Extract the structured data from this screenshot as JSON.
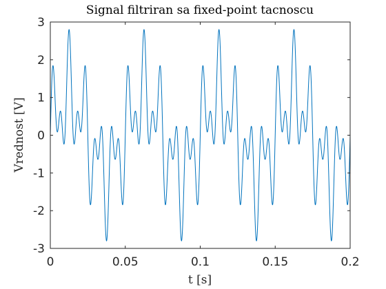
{
  "chart_data": {
    "type": "line",
    "title": "Signal filtriran sa fixed-point tacnoscu",
    "xlabel": "t [s]",
    "ylabel": "Vrednost  [V]",
    "xlim": [
      0,
      0.2
    ],
    "ylim": [
      -3,
      3
    ],
    "xticks": [
      0,
      0.05,
      0.1,
      0.15,
      0.2
    ],
    "xtick_labels": [
      "0",
      "0.05",
      "0.1",
      "0.15",
      "0.2"
    ],
    "yticks": [
      -3,
      -2,
      -1,
      0,
      1,
      2,
      3
    ],
    "ytick_labels": [
      "-3",
      "-2",
      "-1",
      "0",
      "1",
      "2",
      "3"
    ],
    "grid": false,
    "box": true,
    "series": [
      {
        "color": "#0072BD",
        "signal_model": {
          "description_period_s": 0.05,
          "components": [
            {
              "frequency_hz": 20,
              "amplitude": 1.0,
              "phase_deg": 0
            },
            {
              "frequency_hz": 100,
              "amplitude": 1.0,
              "phase_deg": 0
            },
            {
              "frequency_hz": 180,
              "amplitude": 0.8,
              "phase_deg": 0
            }
          ]
        },
        "key_points": [
          {
            "x": 0.0015,
            "y": 2.45
          },
          {
            "x": 0.0215,
            "y": 2.82
          },
          {
            "x": 0.0285,
            "y": -2.78
          },
          {
            "x": 0.0715,
            "y": 2.82
          },
          {
            "x": 0.0785,
            "y": -2.78
          },
          {
            "x": 0.1215,
            "y": 2.82
          },
          {
            "x": 0.1285,
            "y": -2.78
          },
          {
            "x": 0.1715,
            "y": 2.82
          },
          {
            "x": 0.1785,
            "y": -2.78
          }
        ]
      }
    ]
  }
}
